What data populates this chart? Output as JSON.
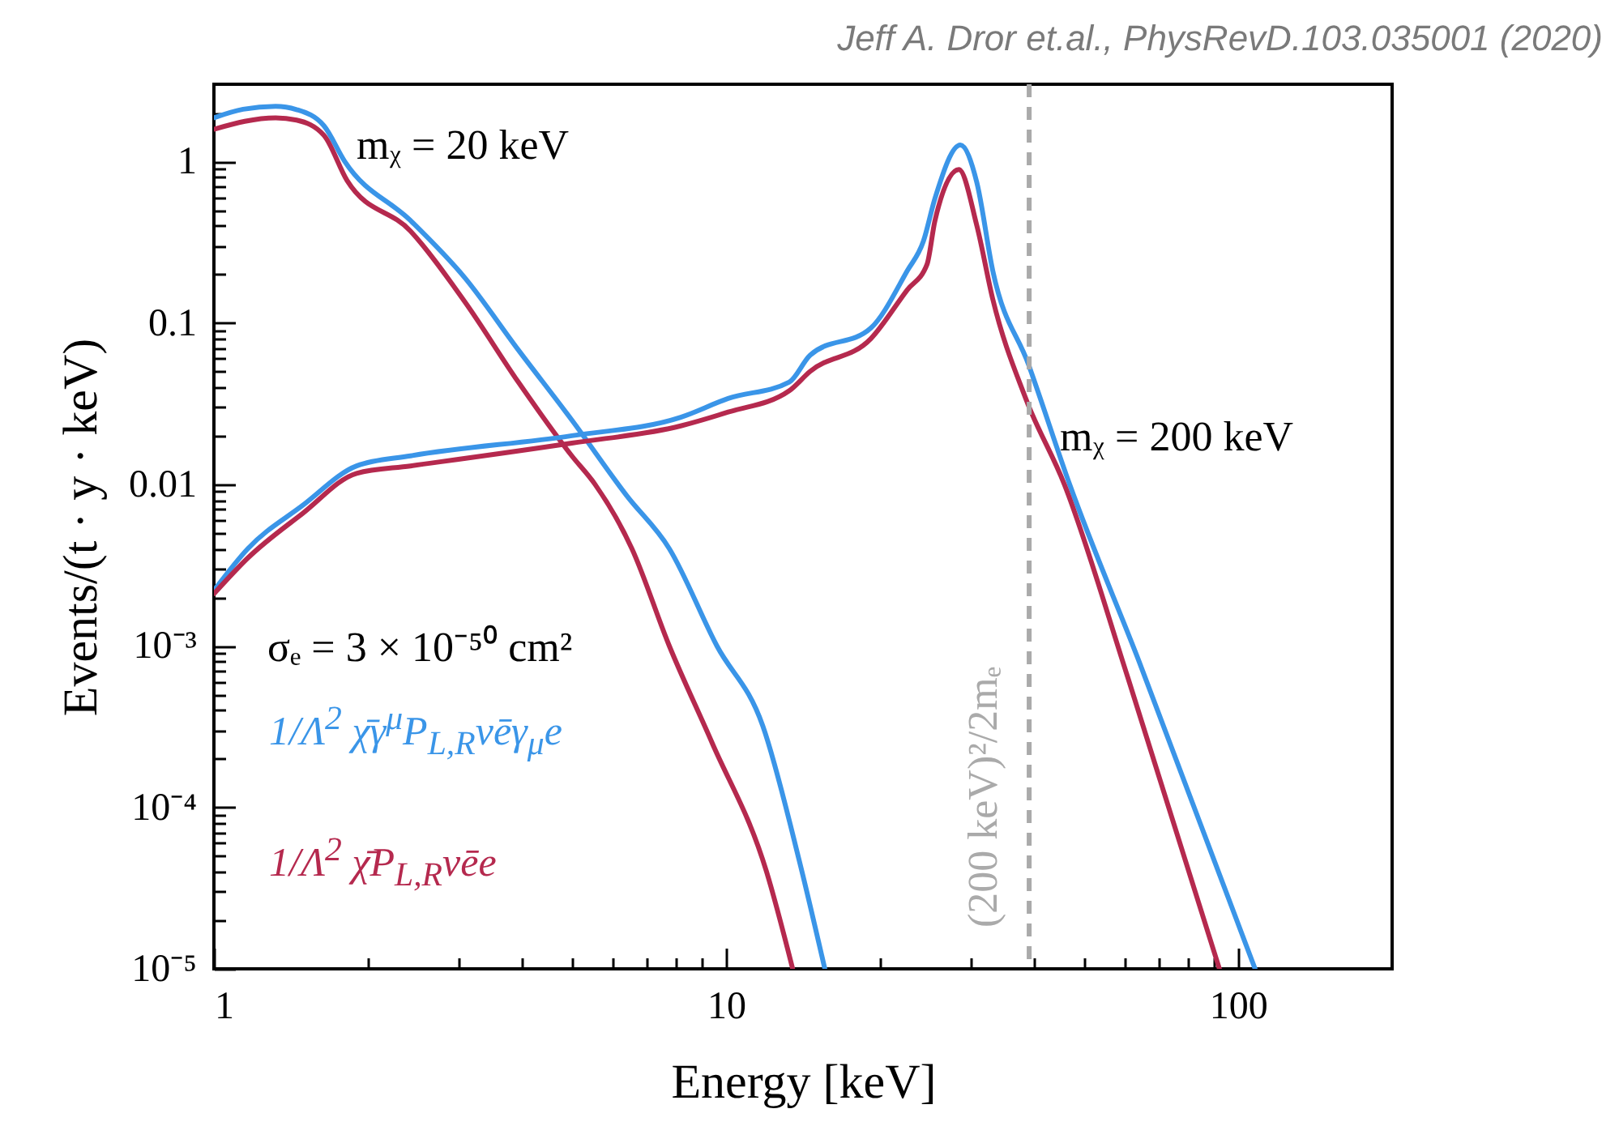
{
  "chart_data": {
    "type": "line",
    "xlabel": "Energy [keV]",
    "ylabel": "Events/(t · y · keV)",
    "log": "xy",
    "grid": false,
    "legend": "bottom left",
    "line_style": "solid",
    "xlim": [
      1,
      200
    ],
    "ylim": [
      1e-05,
      3
    ],
    "xticks": [
      1,
      {
        "value": 2,
        "label": null
      },
      {
        "value": 3,
        "label": null
      },
      {
        "value": 4,
        "label": null
      },
      {
        "value": 5,
        "label": null
      },
      {
        "value": 6,
        "label": null
      },
      {
        "value": 7,
        "label": null
      },
      {
        "value": 8,
        "label": null
      },
      {
        "value": 9,
        "label": null
      },
      10,
      {
        "value": 20,
        "label": null
      },
      {
        "value": 30,
        "label": null
      },
      {
        "value": 40,
        "label": null
      },
      {
        "value": 50,
        "label": null
      },
      {
        "value": 60,
        "label": null
      },
      {
        "value": 70,
        "label": null
      },
      {
        "value": 80,
        "label": null
      },
      {
        "value": 90,
        "label": null
      },
      100
    ],
    "yticks": [
      {
        "value": 1e-05,
        "label": "10⁻⁵"
      },
      {
        "value": 2e-05,
        "label": null
      },
      {
        "value": 3e-05,
        "label": null
      },
      {
        "value": 4e-05,
        "label": null
      },
      {
        "value": 5e-05,
        "label": null
      },
      {
        "value": 6e-05,
        "label": null
      },
      {
        "value": 7e-05,
        "label": null
      },
      {
        "value": 8e-05,
        "label": null
      },
      {
        "value": 9e-05,
        "label": null
      },
      {
        "value": 0.0001,
        "label": "10⁻⁴"
      },
      {
        "value": 0.0002,
        "label": null
      },
      {
        "value": 0.0003,
        "label": null
      },
      {
        "value": 0.0004,
        "label": null
      },
      {
        "value": 0.0005,
        "label": null
      },
      {
        "value": 0.0006,
        "label": null
      },
      {
        "value": 0.0007,
        "label": null
      },
      {
        "value": 0.0008,
        "label": null
      },
      {
        "value": 0.0009,
        "label": null
      },
      {
        "value": 0.001,
        "label": "10⁻³"
      },
      {
        "value": 0.002,
        "label": null
      },
      {
        "value": 0.003,
        "label": null
      },
      {
        "value": 0.004,
        "label": null
      },
      {
        "value": 0.005,
        "label": null
      },
      {
        "value": 0.006,
        "label": null
      },
      {
        "value": 0.007,
        "label": null
      },
      {
        "value": 0.008,
        "label": null
      },
      {
        "value": 0.009,
        "label": null
      },
      0.01,
      {
        "value": 0.02,
        "label": null
      },
      {
        "value": 0.03,
        "label": null
      },
      {
        "value": 0.04,
        "label": null
      },
      {
        "value": 0.05,
        "label": null
      },
      {
        "value": 0.06,
        "label": null
      },
      {
        "value": 0.07,
        "label": null
      },
      {
        "value": 0.08,
        "label": null
      },
      {
        "value": 0.09,
        "label": null
      },
      0.1,
      {
        "value": 0.2,
        "label": null
      },
      {
        "value": 0.3,
        "label": null
      },
      {
        "value": 0.4,
        "label": null
      },
      {
        "value": 0.5,
        "label": null
      },
      {
        "value": 0.6,
        "label": null
      },
      {
        "value": 0.7,
        "label": null
      },
      {
        "value": 0.8,
        "label": null
      },
      {
        "value": 0.9,
        "label": null
      },
      1,
      {
        "value": 2,
        "label": null
      }
    ],
    "series": [
      {
        "name": "1/Λ$^{2}$ χ̄γ$^{μ}$P$_{L,R}$νēγ$_{μ}$e",
        "color": "#3a95e8",
        "x": [
          1,
          1.14,
          1.32,
          1.45,
          1.64,
          1.8,
          2.42,
          3.09,
          3.93,
          5.0,
          6.4,
          7.75,
          9.6,
          11.8,
          13.9,
          15.6
        ],
        "values": [
          1.86,
          2.1,
          2.19,
          2.09,
          1.66,
          1.0,
          0.43,
          0.19,
          0.068,
          0.025,
          0.0085,
          0.004,
          0.001,
          0.00032,
          4.7e-05,
          1e-05
        ]
      },
      {
        "name": "1/Λ$^{2}$ χ̄P$_{L,R}$νēe",
        "color": "#b5294e",
        "x": [
          1,
          1.32,
          1.45,
          1.64,
          1.82,
          2.42,
          3.09,
          3.93,
          5.0,
          5.55,
          6.55,
          7.75,
          9.4,
          12.0,
          13.5
        ],
        "values": [
          1.58,
          1.86,
          1.8,
          1.45,
          0.76,
          0.37,
          0.135,
          0.043,
          0.015,
          0.01,
          0.004,
          0.001,
          0.00025,
          4e-05,
          1e-05
        ]
      },
      {
        "color": "#3a95e8",
        "x": [
          1,
          1.165,
          1.49,
          1.9,
          2.42,
          5.0,
          8.16,
          10.1,
          13.3,
          14.6,
          19.2,
          22.6,
          24.3,
          25.6,
          28.7,
          30.9,
          33.2,
          39,
          46.9,
          64.1,
          108
        ],
        "values": [
          0.0022,
          0.004,
          0.0074,
          0.013,
          0.015,
          0.02,
          0.026,
          0.034,
          0.043,
          0.063,
          0.093,
          0.21,
          0.32,
          0.59,
          1.26,
          0.74,
          0.21,
          0.055,
          0.01,
          0.0008,
          1e-05
        ]
      },
      {
        "color": "#b5294e",
        "x": [
          1,
          1.165,
          1.49,
          1.9,
          2.42,
          5.0,
          8.16,
          10.1,
          13.3,
          14.6,
          19.2,
          22.6,
          24.7,
          25.6,
          28.5,
          30.9,
          33.2,
          38.5,
          45.8,
          61,
          92
        ],
        "values": [
          0.0021,
          0.0035,
          0.0066,
          0.0117,
          0.013,
          0.018,
          0.023,
          0.028,
          0.038,
          0.05,
          0.08,
          0.16,
          0.23,
          0.43,
          0.89,
          0.4,
          0.14,
          0.034,
          0.01,
          0.00063,
          1e-05
        ]
      }
    ],
    "ref_lines": [
      {
        "axis": "x",
        "value": 39.1,
        "label": "(200 keV)²/2mₑ",
        "color": "#aaaaaa",
        "line_style": "dashed"
      }
    ],
    "annotations": [
      "Jeff A. Dror et.al., PhysRevD.103.035001 (2020)",
      "mᵪ = 20 keV",
      "mᵪ = 200 keV",
      "σₑ = 3 × 10⁻⁵⁰ cm²"
    ]
  }
}
